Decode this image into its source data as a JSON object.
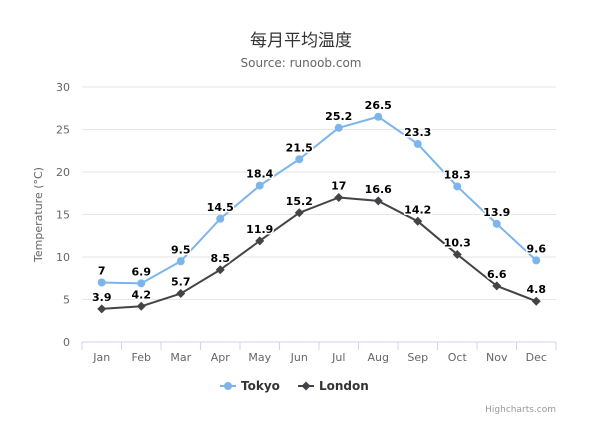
{
  "title": "每月平均温度",
  "subtitle": "Source: runoob.com",
  "credits": "Highcharts.com",
  "chart_data": {
    "type": "line",
    "title": "每月平均温度",
    "subtitle": "Source: runoob.com",
    "categories": [
      "Jan",
      "Feb",
      "Mar",
      "Apr",
      "May",
      "Jun",
      "Jul",
      "Aug",
      "Sep",
      "Oct",
      "Nov",
      "Dec"
    ],
    "ylabel": "Temperature (°C)",
    "xlabel": "",
    "ylim": [
      0,
      30
    ],
    "yticks": [
      0,
      5,
      10,
      15,
      20,
      25,
      30
    ],
    "grid": true,
    "legend": "bottom-center",
    "data_labels": true,
    "series": [
      {
        "name": "Tokyo",
        "color": "#7cb5ec",
        "marker": "circle",
        "values": [
          7,
          6.9,
          9.5,
          14.5,
          18.4,
          21.5,
          25.2,
          26.5,
          23.3,
          18.3,
          13.9,
          9.6
        ]
      },
      {
        "name": "London",
        "color": "#434348",
        "marker": "diamond",
        "values": [
          3.9,
          4.2,
          5.7,
          8.5,
          11.9,
          15.2,
          17,
          16.6,
          14.2,
          10.3,
          6.6,
          4.8
        ]
      }
    ]
  }
}
